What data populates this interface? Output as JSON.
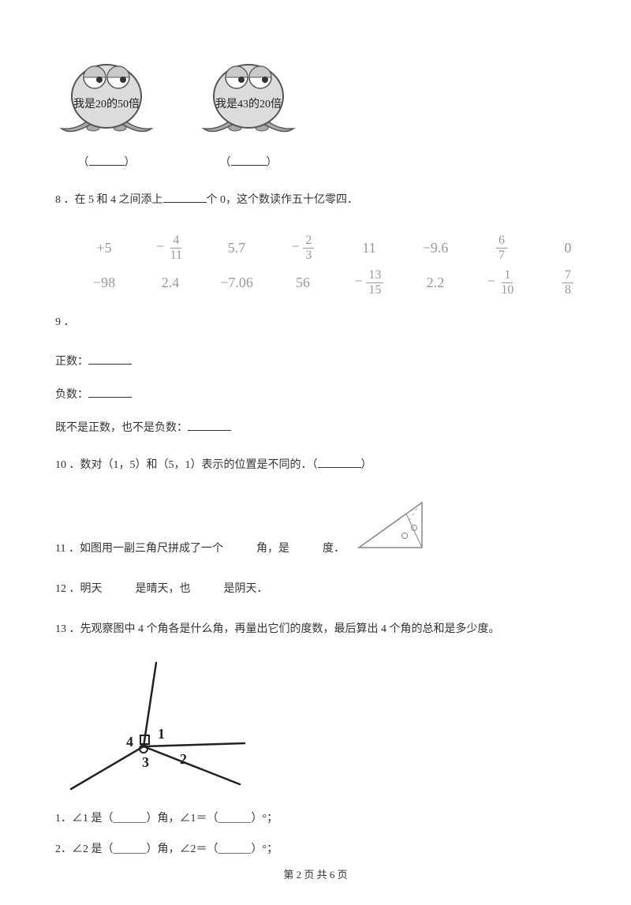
{
  "creatures": {
    "left_text": "我是20的50倍",
    "right_text": "我是43的20倍",
    "left_blank_before": "（",
    "left_blank": "______",
    "left_blank_after": "）",
    "right_blank_before": "（",
    "right_blank": "______",
    "right_blank_after": "）",
    "body_fill": "#dcdcdc",
    "stroke": "#555555"
  },
  "q8": {
    "text_a": "8 ．在 5 和 4 之间添上",
    "text_b": "个 0，这个数读作五十亿零四．"
  },
  "q9": {
    "label": "9 ．",
    "row1": [
      {
        "t": "plain",
        "v": "+5"
      },
      {
        "t": "neg_frac",
        "n": "4",
        "d": "11"
      },
      {
        "t": "plain",
        "v": "5.7"
      },
      {
        "t": "neg_frac",
        "n": "2",
        "d": "3"
      },
      {
        "t": "plain",
        "v": "11"
      },
      {
        "t": "plain",
        "v": "−9.6"
      },
      {
        "t": "frac",
        "n": "6",
        "d": "7"
      },
      {
        "t": "plain",
        "v": "0"
      }
    ],
    "row2": [
      {
        "t": "plain",
        "v": "−98"
      },
      {
        "t": "plain",
        "v": "2.4"
      },
      {
        "t": "plain",
        "v": "−7.06"
      },
      {
        "t": "plain",
        "v": "56"
      },
      {
        "t": "neg_frac",
        "n": "13",
        "d": "15"
      },
      {
        "t": "plain",
        "v": "2.2"
      },
      {
        "t": "neg_frac",
        "n": "1",
        "d": "10"
      },
      {
        "t": "frac",
        "n": "7",
        "d": "8"
      }
    ],
    "positive_label": "正数：",
    "negative_label": "负数：",
    "neither_label": "既不是正数，也不是负数：",
    "number_color": "#999999"
  },
  "q10": {
    "text_a": "10 ．数对（1，5）和（5，1）表示的位置是不同的．（",
    "text_b": "）"
  },
  "q11": {
    "text_a": "11 ．如图用一副三角尺拼成了一个　　　角，是　　　度．",
    "stroke": "#888888"
  },
  "q12": {
    "text": "12 ．明天　　　是晴天，也　　　是阴天．"
  },
  "q13": {
    "text": "13 ．先观察图中 4 个角各是什么角，再量出它们的度数，最后算出 4 个角的总和是多少度。",
    "label1": "1",
    "label2": "2",
    "label3": "3",
    "label4": "4",
    "line1": "1．∠1 是（______）角，∠1＝（______）°；",
    "line2": "2．∠2 是（______）角，∠2＝（______）°；"
  },
  "footer": {
    "text": "第 2 页 共 6 页"
  }
}
